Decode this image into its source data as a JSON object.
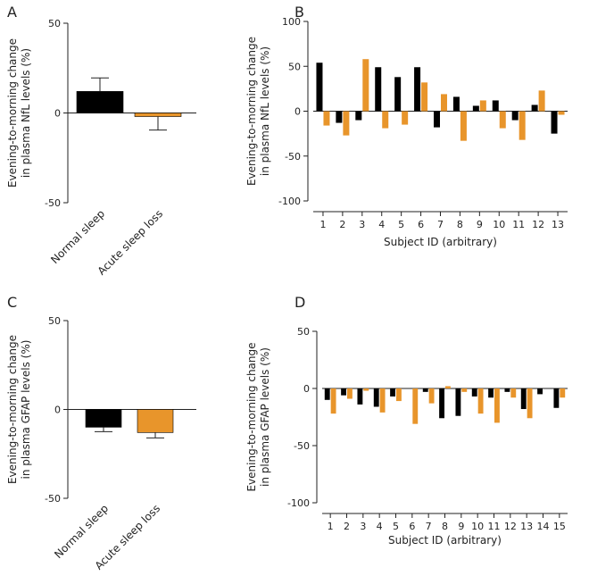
{
  "chart_data": [
    {
      "panel": "A",
      "type": "bar",
      "ylabel": [
        "Evening-to-morning change",
        "in plasma NfL levels  (%)"
      ],
      "ylim": [
        -50,
        50
      ],
      "yticks": [
        50,
        0,
        -50
      ],
      "categories": [
        "Normal sleep",
        "Acute sleep loss"
      ],
      "values": [
        12,
        -2
      ],
      "errors": [
        7.5,
        7.5
      ],
      "colors": [
        "#000000",
        "#e8952b"
      ]
    },
    {
      "panel": "B",
      "type": "bar",
      "xlabel": "Subject ID (arbitrary)",
      "ylabel": [
        "Evening-to-morning change",
        "in plasma NfL levels  (%)"
      ],
      "ylim": [
        -100,
        100
      ],
      "yticks": [
        100,
        50,
        0,
        -50,
        -100
      ],
      "categories": [
        "1",
        "2",
        "3",
        "4",
        "5",
        "6",
        "7",
        "8",
        "9",
        "10",
        "11",
        "12",
        "13"
      ],
      "series": [
        {
          "name": "Normal sleep",
          "color": "#000000",
          "values": [
            54,
            -13,
            -10,
            49,
            38,
            49,
            -18,
            16,
            6,
            12,
            -10,
            7,
            -25
          ]
        },
        {
          "name": "Acute sleep loss",
          "color": "#e8952b",
          "values": [
            -16,
            -27,
            58,
            -19,
            -15,
            32,
            19,
            -33,
            12,
            -19,
            -32,
            23,
            -4
          ]
        }
      ]
    },
    {
      "panel": "C",
      "type": "bar",
      "ylabel": [
        "Evening-to-morning change",
        "in plasma GFAP levels  (%)"
      ],
      "ylim": [
        -50,
        50
      ],
      "yticks": [
        50,
        0,
        -50
      ],
      "categories": [
        "Normal sleep",
        "Acute sleep loss"
      ],
      "values": [
        -10,
        -13
      ],
      "errors": [
        2.5,
        3
      ],
      "colors": [
        "#000000",
        "#e8952b"
      ]
    },
    {
      "panel": "D",
      "type": "bar",
      "xlabel": "Subject ID (arbitrary)",
      "ylabel": [
        "Evening-to-morning change",
        "in plasma GFAP levels  (%)"
      ],
      "ylim": [
        -100,
        50
      ],
      "yticks": [
        50,
        0,
        -50,
        -100
      ],
      "categories": [
        "1",
        "2",
        "3",
        "4",
        "5",
        "6",
        "7",
        "8",
        "9",
        "10",
        "11",
        "12",
        "13",
        "14",
        "15"
      ],
      "series": [
        {
          "name": "Normal sleep",
          "color": "#000000",
          "values": [
            -10,
            -6,
            -14,
            -16,
            -7,
            0,
            -3,
            -26,
            -24,
            -7,
            -8,
            -3,
            -18,
            -5,
            -17
          ]
        },
        {
          "name": "Acute sleep loss",
          "color": "#e8952b",
          "values": [
            -22,
            -9,
            -2,
            -21,
            -11,
            -31,
            -13,
            2,
            -3,
            -22,
            -30,
            -8,
            -26,
            0,
            -8
          ]
        }
      ]
    }
  ]
}
